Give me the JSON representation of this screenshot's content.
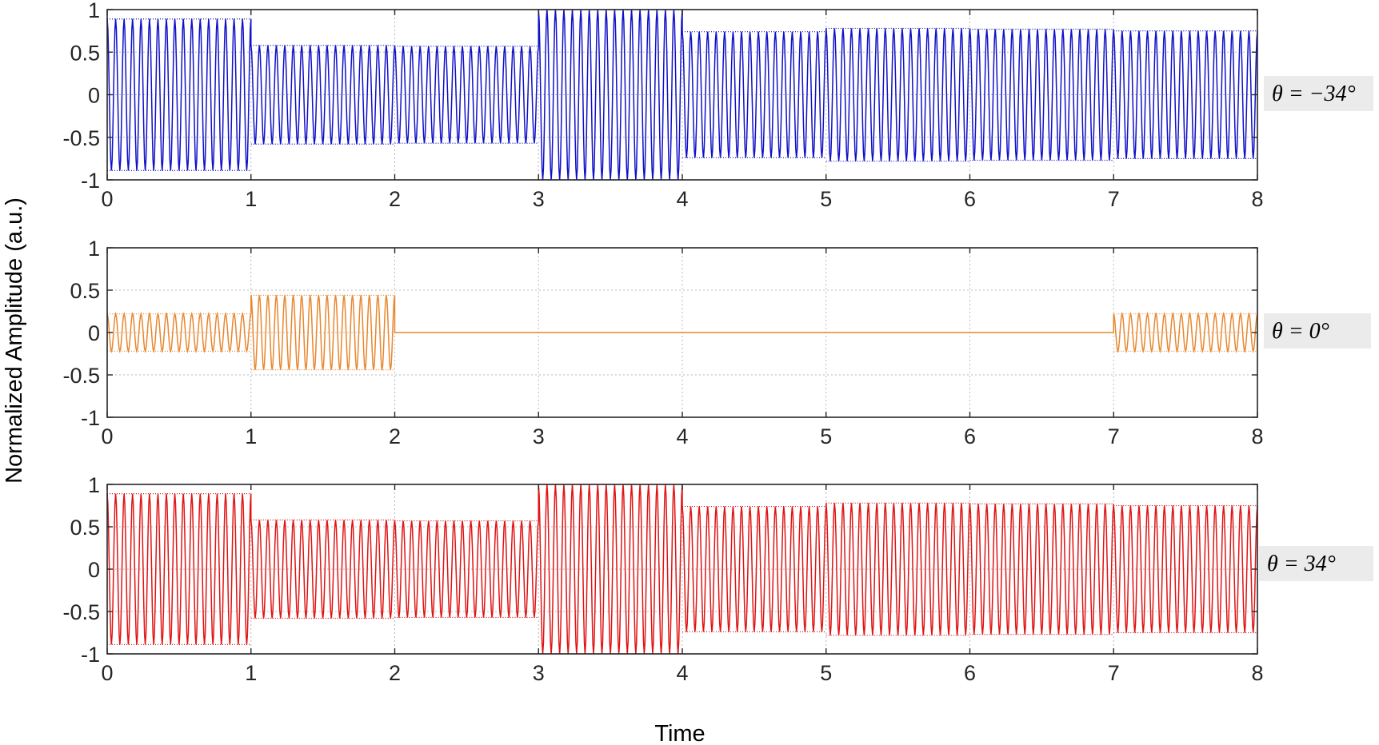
{
  "chart_data": [
    {
      "type": "line",
      "annotation": "θ = −34°",
      "color": "#1010c8",
      "xlim": [
        0,
        8
      ],
      "ylim": [
        -1,
        1
      ],
      "xticks": [
        "0",
        "1",
        "2",
        "3",
        "4",
        "5",
        "6",
        "7",
        "8"
      ],
      "yticks": [
        "1",
        "0.5",
        "0",
        "-0.5",
        "-1"
      ],
      "grid": true,
      "segments": [
        {
          "t_start": 0,
          "t_end": 1,
          "amplitude": 0.89
        },
        {
          "t_start": 1,
          "t_end": 2,
          "amplitude": 0.58
        },
        {
          "t_start": 2,
          "t_end": 3,
          "amplitude": 0.57
        },
        {
          "t_start": 3,
          "t_end": 4,
          "amplitude": 1.0
        },
        {
          "t_start": 4,
          "t_end": 5,
          "amplitude": 0.74
        },
        {
          "t_start": 5,
          "t_end": 6,
          "amplitude": 0.78
        },
        {
          "t_start": 6,
          "t_end": 7,
          "amplitude": 0.77
        },
        {
          "t_start": 7,
          "t_end": 8,
          "amplitude": 0.75
        }
      ]
    },
    {
      "type": "line",
      "annotation": "θ = 0°",
      "color": "#e8872e",
      "xlim": [
        0,
        8
      ],
      "ylim": [
        -1,
        1
      ],
      "xticks": [
        "0",
        "1",
        "2",
        "3",
        "4",
        "5",
        "6",
        "7",
        "8"
      ],
      "yticks": [
        "1",
        "0.5",
        "0",
        "-0.5",
        "-1"
      ],
      "grid": true,
      "segments": [
        {
          "t_start": 0,
          "t_end": 1,
          "amplitude": 0.22
        },
        {
          "t_start": 1,
          "t_end": 2,
          "amplitude": 0.44
        },
        {
          "t_start": 2,
          "t_end": 3,
          "amplitude": 0
        },
        {
          "t_start": 3,
          "t_end": 4,
          "amplitude": 0
        },
        {
          "t_start": 4,
          "t_end": 5,
          "amplitude": 0
        },
        {
          "t_start": 5,
          "t_end": 6,
          "amplitude": 0
        },
        {
          "t_start": 6,
          "t_end": 7,
          "amplitude": 0
        },
        {
          "t_start": 7,
          "t_end": 8,
          "amplitude": 0.22
        }
      ]
    },
    {
      "type": "line",
      "annotation": "θ = 34°",
      "color": "#e01414",
      "xlim": [
        0,
        8
      ],
      "ylim": [
        -1,
        1
      ],
      "xticks": [
        "0",
        "1",
        "2",
        "3",
        "4",
        "5",
        "6",
        "7",
        "8"
      ],
      "yticks": [
        "1",
        "0.5",
        "0",
        "-0.5",
        "-1"
      ],
      "grid": true,
      "segments": [
        {
          "t_start": 0,
          "t_end": 1,
          "amplitude": 0.89
        },
        {
          "t_start": 1,
          "t_end": 2,
          "amplitude": 0.58
        },
        {
          "t_start": 2,
          "t_end": 3,
          "amplitude": 0.57
        },
        {
          "t_start": 3,
          "t_end": 4,
          "amplitude": 1.0
        },
        {
          "t_start": 4,
          "t_end": 5,
          "amplitude": 0.74
        },
        {
          "t_start": 5,
          "t_end": 6,
          "amplitude": 0.78
        },
        {
          "t_start": 6,
          "t_end": 7,
          "amplitude": 0.77
        },
        {
          "t_start": 7,
          "t_end": 8,
          "amplitude": 0.75
        }
      ]
    }
  ],
  "axes": {
    "xlabel": "Time",
    "ylabel": "Normalized Amplitude (a.u.)"
  },
  "colors": {
    "label_box": "#ebebeb",
    "grid": "#b8b8b8",
    "frame": "#262626"
  }
}
